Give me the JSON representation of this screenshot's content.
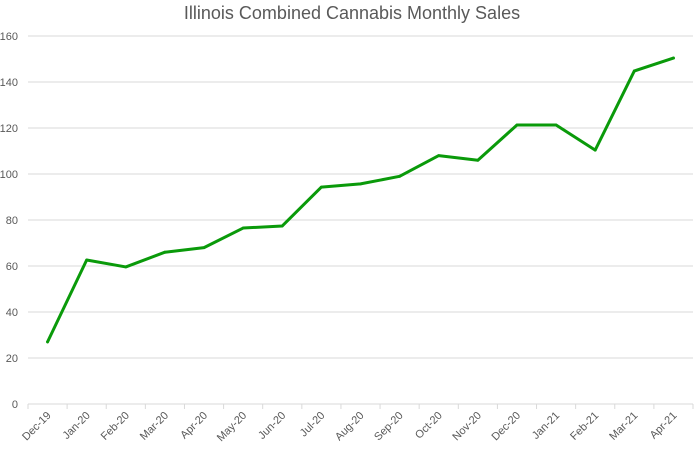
{
  "chart_data": {
    "type": "line",
    "title": "Illinois Combined Cannabis Monthly Sales",
    "xlabel": "",
    "ylabel": "",
    "ylim": [
      0,
      160
    ],
    "yticks": [
      0,
      20,
      40,
      60,
      80,
      100,
      120,
      140,
      160
    ],
    "grid": true,
    "legend": "none",
    "categories": [
      "Dec-19",
      "Jan-20",
      "Feb-20",
      "Mar-20",
      "Apr-20",
      "May-20",
      "Jun-20",
      "Jul-20",
      "Aug-20",
      "Sep-20",
      "Oct-20",
      "Nov-20",
      "Dec-20",
      "Jan-21",
      "Feb-21",
      "Mar-21",
      "Apr-21"
    ],
    "series": [
      {
        "name": "Combined Cannabis Monthly Sales",
        "color": "#0a9a0a",
        "values": [
          27,
          62.6,
          59.6,
          66,
          68,
          76.5,
          77.4,
          94.3,
          95.7,
          99,
          108,
          106,
          121.3,
          121.3,
          110.4,
          144.8,
          150.4
        ]
      }
    ]
  }
}
